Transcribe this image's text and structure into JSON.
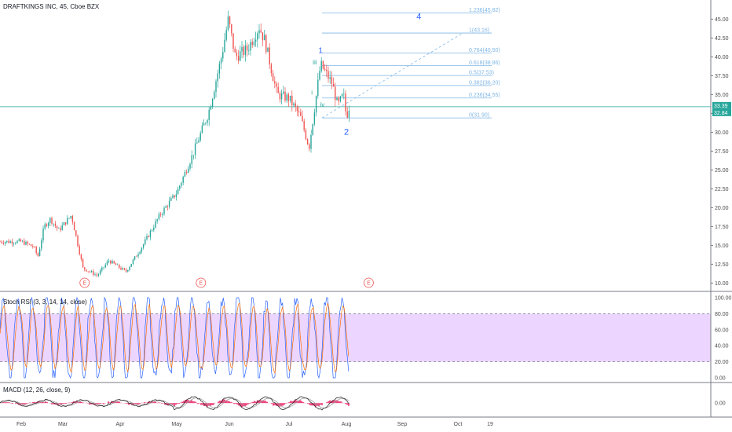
{
  "header": {
    "title": "DRAFTKINGS INC, 45, Cboe BZX",
    "stoch_label": "Stoch RSI (3, 3, 14, 14, close)",
    "macd_label": "MACD (12, 26, close, 9)"
  },
  "colors": {
    "up": "#26a69a",
    "down": "#ef5350",
    "fib": "#7eb6e6",
    "stoch_band": "#e6c8ff",
    "stoch_k": "#2962ff",
    "stoch_d": "#ff6d00",
    "macd_line": "#2b2b2b",
    "macd_signal": "#9e9e9e",
    "macd_hist": "#e91e63",
    "wave_blue": "#2962ff",
    "wave_green": "#26a69a",
    "earnings": "#ef5350",
    "price_tag": "#26a69a"
  },
  "chart_data": {
    "type": "candlestick",
    "price_axis": {
      "ticks": [
        "45.00",
        "42.50",
        "40.00",
        "37.50",
        "35.00",
        "32.50",
        "30.00",
        "27.50",
        "25.00",
        "22.50",
        "20.00",
        "17.50",
        "15.00",
        "12.50",
        "10.00"
      ],
      "min": 9.0,
      "max": 46.5,
      "current_price": "33.39",
      "current_price_2": "32.84"
    },
    "time_axis": [
      "Feb",
      "Mar",
      "Apr",
      "May",
      "Jun",
      "Jul",
      "Aug",
      "Sep",
      "Oct",
      "19"
    ],
    "price_path": [
      {
        "month": 0.0,
        "price": 15.5
      },
      {
        "month": 0.3,
        "price": 14.8
      },
      {
        "month": 0.4,
        "price": 13.5
      },
      {
        "month": 0.55,
        "price": 17.5
      },
      {
        "month": 0.7,
        "price": 18.5
      },
      {
        "month": 0.9,
        "price": 17.0
      },
      {
        "month": 1.15,
        "price": 19.0
      },
      {
        "month": 1.35,
        "price": 12.0
      },
      {
        "month": 1.6,
        "price": 11.0
      },
      {
        "month": 1.8,
        "price": 13.0
      },
      {
        "month": 2.1,
        "price": 11.5
      },
      {
        "month": 2.4,
        "price": 15.0
      },
      {
        "month": 2.7,
        "price": 19.0
      },
      {
        "month": 3.0,
        "price": 22.0
      },
      {
        "month": 3.3,
        "price": 27.0
      },
      {
        "month": 3.6,
        "price": 32.5
      },
      {
        "month": 3.85,
        "price": 40.0
      },
      {
        "month": 3.98,
        "price": 45.0
      },
      {
        "month": 4.1,
        "price": 40.0
      },
      {
        "month": 4.3,
        "price": 41.0
      },
      {
        "month": 4.5,
        "price": 44.0
      },
      {
        "month": 4.6,
        "price": 42.0
      },
      {
        "month": 4.8,
        "price": 35.0
      },
      {
        "month": 5.0,
        "price": 34.5
      },
      {
        "month": 5.2,
        "price": 32.0
      },
      {
        "month": 5.35,
        "price": 28.0
      },
      {
        "month": 5.55,
        "price": 39.0
      },
      {
        "month": 5.75,
        "price": 36.5
      },
      {
        "month": 5.85,
        "price": 33.5
      },
      {
        "month": 5.95,
        "price": 35.0
      },
      {
        "month": 6.0,
        "price": 32.0
      },
      {
        "month": 6.05,
        "price": 33.4
      }
    ],
    "earnings_markers": [
      {
        "month": 1.38,
        "label": "E"
      },
      {
        "month": 3.46,
        "label": "E"
      },
      {
        "month": 6.4,
        "label": "E"
      }
    ],
    "fibonacci": [
      {
        "ratio": "1.236",
        "price": 45.82,
        "label": "1.236(45.82)"
      },
      {
        "ratio": "1",
        "price": 43.16,
        "label": "1(43.16)"
      },
      {
        "ratio": "0.764",
        "price": 40.5,
        "label": "0.764(40.50)"
      },
      {
        "ratio": "0.618",
        "price": 38.86,
        "label": "0.618(38.86)"
      },
      {
        "ratio": "0.5",
        "price": 37.53,
        "label": "0.5(37.53)"
      },
      {
        "ratio": "0.382",
        "price": 36.2,
        "label": "0.382(36.20)"
      },
      {
        "ratio": "0.236",
        "price": 34.55,
        "label": "0.236(34.55)"
      },
      {
        "ratio": "0",
        "price": 31.9,
        "label": "0(31.90)"
      }
    ],
    "wave_labels": [
      {
        "text": "4",
        "month": 7.3,
        "price": 45.0,
        "color": "blue",
        "size": 11
      },
      {
        "text": "1",
        "month": 5.55,
        "price": 40.5,
        "color": "blue",
        "size": 10
      },
      {
        "text": "2",
        "month": 6.0,
        "price": 29.7,
        "color": "blue",
        "size": 11
      },
      {
        "text": "iii",
        "month": 5.45,
        "price": 39.0,
        "color": "green",
        "size": 8
      },
      {
        "text": "i",
        "month": 5.4,
        "price": 35.0,
        "color": "green",
        "size": 8
      },
      {
        "text": "ii",
        "month": 5.4,
        "price": 29.8,
        "color": "green",
        "size": 8
      },
      {
        "text": "iv",
        "month": 5.58,
        "price": 33.4,
        "color": "green",
        "size": 8
      }
    ],
    "stoch_rsi": {
      "ticks": [
        "100.00",
        "80.00",
        "60.00",
        "40.00",
        "20.00",
        "0.00"
      ],
      "upper_band": 80,
      "lower_band": 20
    },
    "macd": {
      "ticks": [
        "0.00"
      ]
    }
  }
}
